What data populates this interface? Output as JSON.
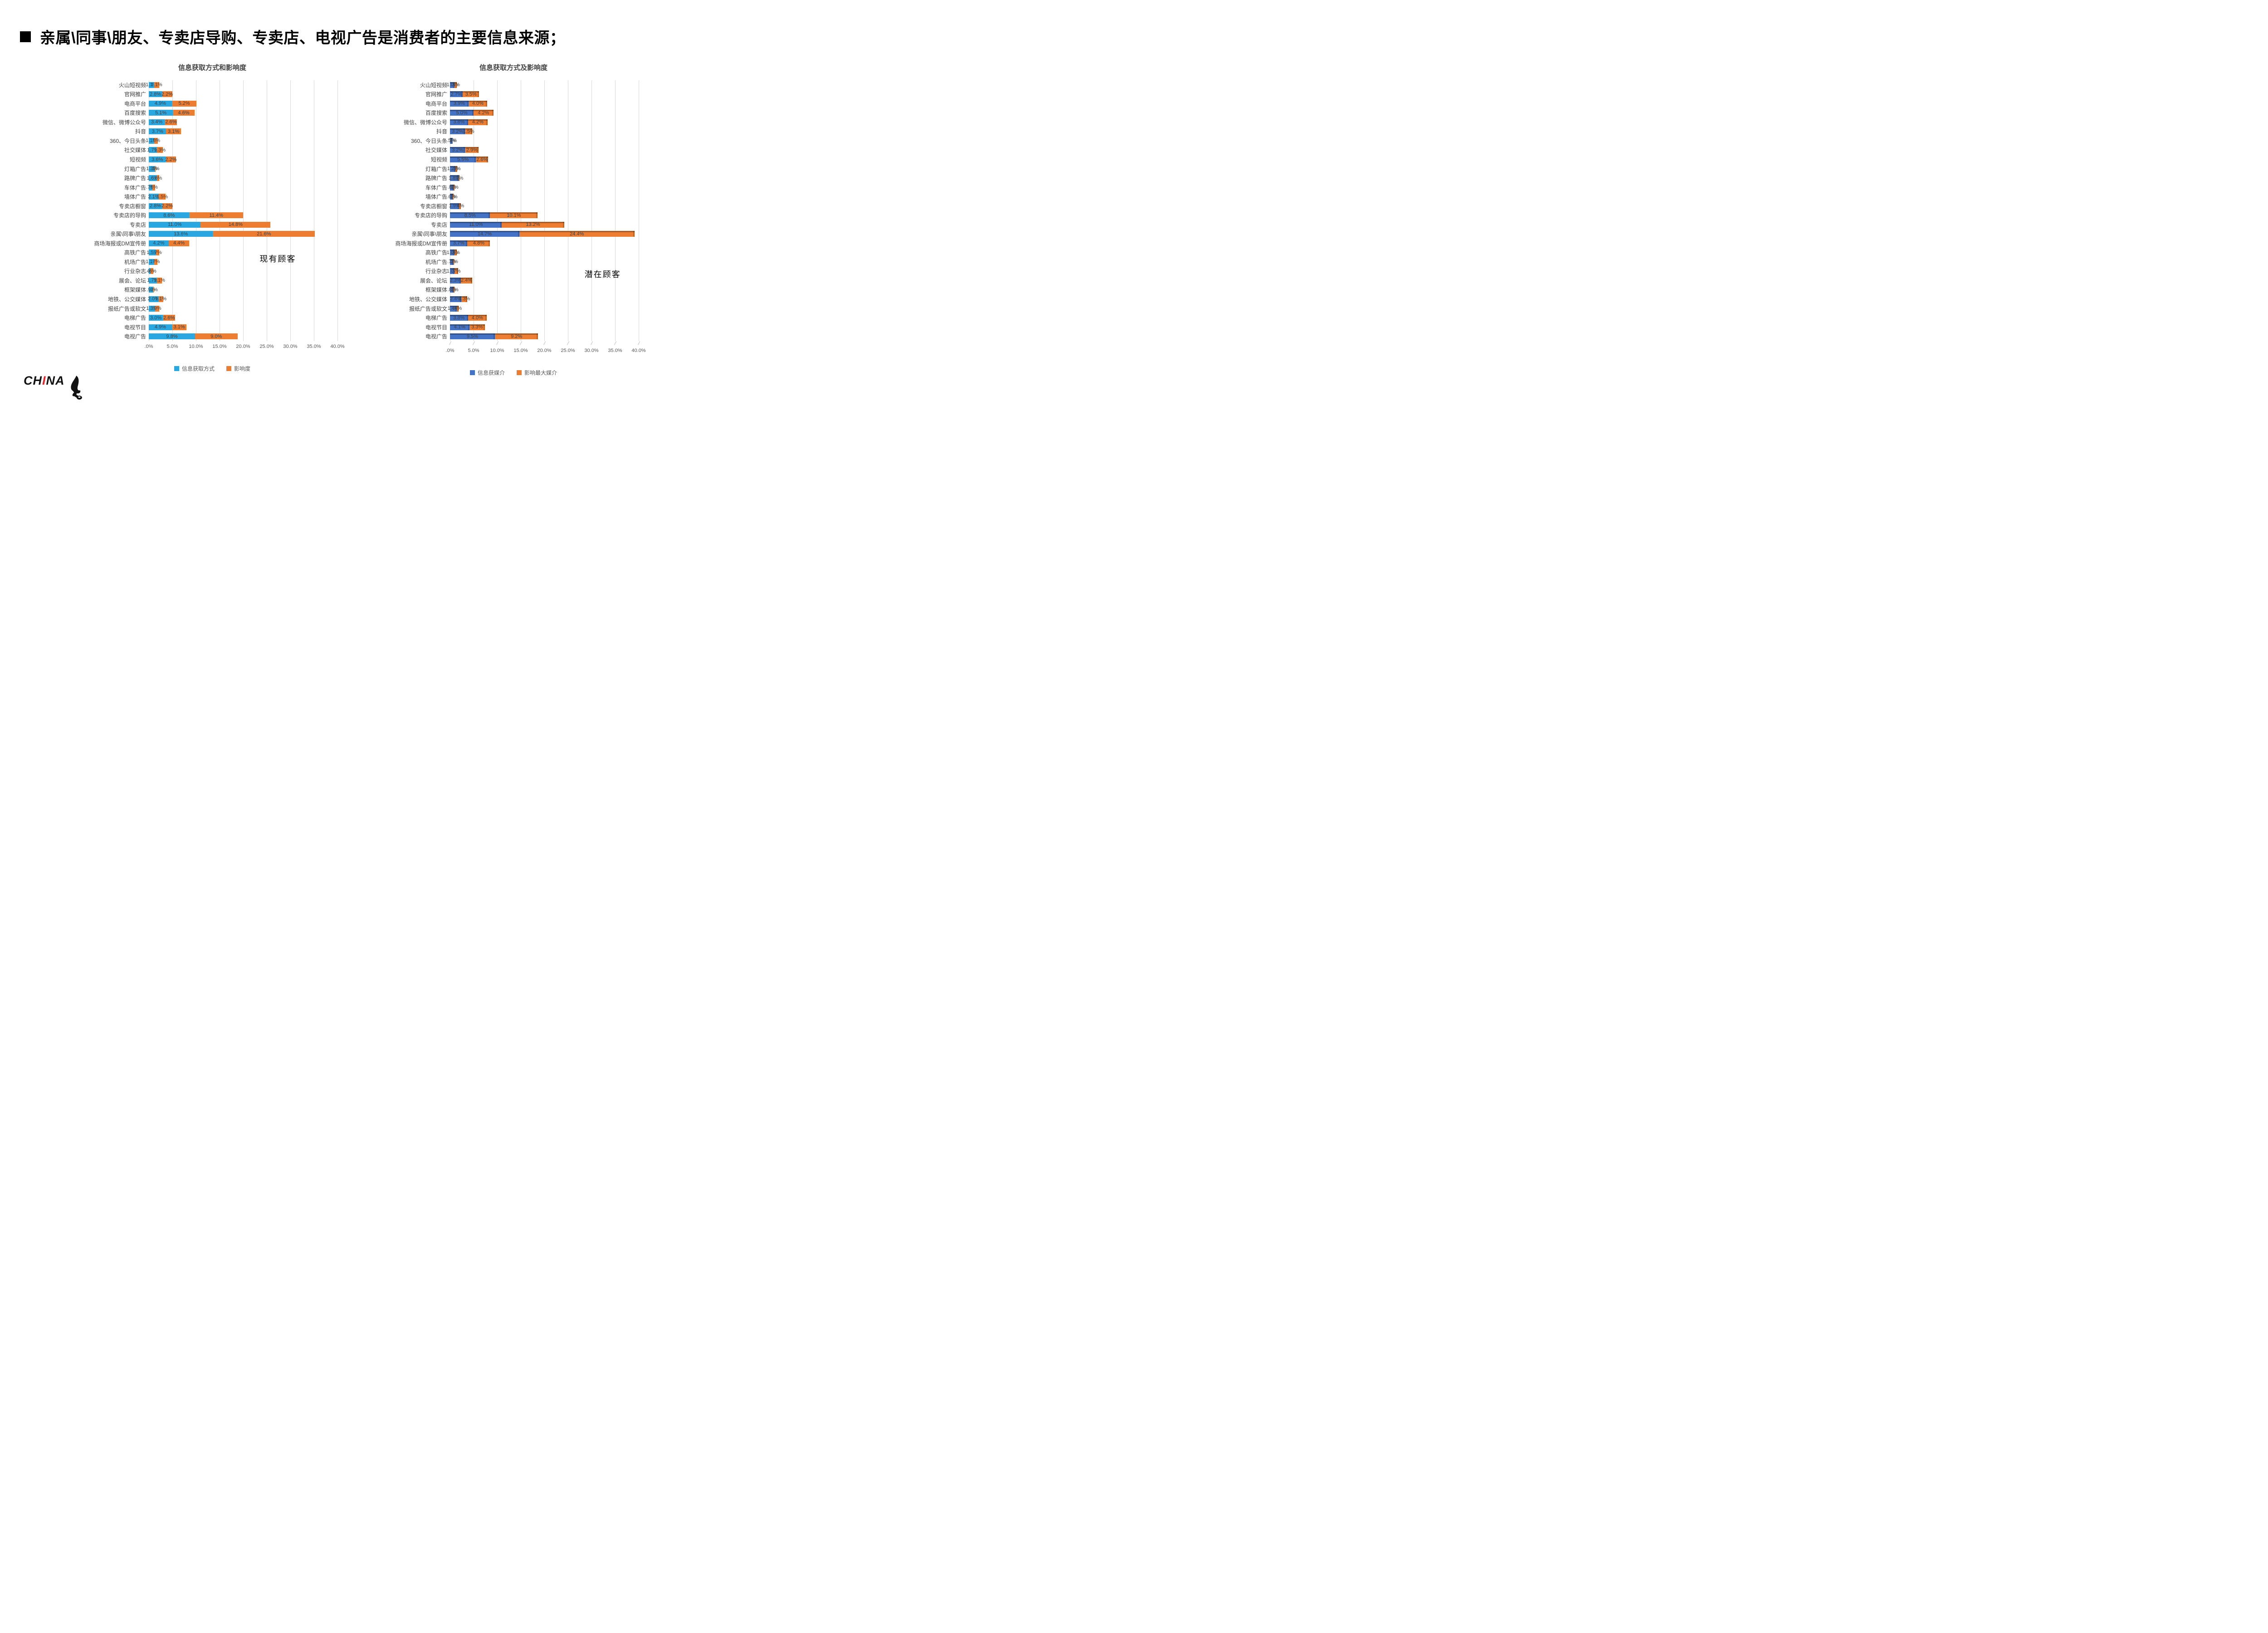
{
  "slide": {
    "title": "亲属\\同事\\朋友、专卖店导购、专卖店、电视广告是消费者的主要信息来源；"
  },
  "logo": {
    "left": "CH",
    "accent": "I",
    "right": "NA"
  },
  "colors": {
    "left_primary": "#29a7e1",
    "right_primary": "#4472c4",
    "secondary": "#ed7d31",
    "gridline": "#d9d9d9",
    "label_text": "#595959"
  },
  "chart_data": [
    {
      "type": "bar",
      "orientation": "horizontal-stacked",
      "style": "flat",
      "title": "信息获取方式和影响度",
      "annotation": "现有顾客",
      "xlim": [
        0,
        40
      ],
      "grid": true,
      "legend_position": "bottom",
      "x_ticks": [
        ".0%",
        "5.0%",
        "10.0%",
        "15.0%",
        "20.0%",
        "25.0%",
        "30.0%",
        "35.0%",
        "40.0%"
      ],
      "categories": [
        "火山短视频",
        "官网推广",
        "电商平台",
        "百度搜索",
        "微信、微博公众号",
        "抖音",
        "360、今日头条",
        "社交媒体",
        "短视频",
        "灯箱广告",
        "路牌广告",
        "车体广告",
        "墙体广告",
        "专卖店橱窗",
        "专卖店的导购",
        "专卖店",
        "亲属\\同事\\朋友",
        "商场海报或DM宣传册",
        "高铁广告",
        "机场广告",
        "行业杂志",
        "展会、论坛",
        "框架媒体",
        "地铁、公交媒体",
        "报纸广告或软文",
        "电梯广告",
        "电视节目",
        "电视广告"
      ],
      "series": [
        {
          "name": "信息获取方式",
          "color": "#29a7e1",
          "values": [
            1.1,
            2.8,
            4.9,
            5.1,
            3.4,
            3.7,
            1.1,
            1.7,
            3.6,
            1.3,
            1.6,
            0.7,
            2.1,
            2.8,
            8.6,
            11.0,
            13.6,
            4.2,
            1.5,
            1.1,
            0.4,
            1.7,
            0.9,
            2.0,
            1.3,
            3.0,
            4.9,
            9.8
          ],
          "labels": [
            "1.1%",
            "2.8%",
            "4.9%",
            "5.1%",
            "3.4%",
            "3.7%",
            "1.1%",
            "1.7%",
            "3.6%",
            "1.3%",
            "1.6%",
            ".7%",
            "2.1%",
            "2.8%",
            "8.6%",
            "11.0%",
            "13.6%",
            "4.2%",
            "1.5%",
            "1.1%",
            ".4%",
            "1.7%",
            ".9%",
            "2.0%",
            "1.3%",
            "3.0%",
            "4.9%",
            "9.8%"
          ]
        },
        {
          "name": "影响度",
          "color": "#ed7d31",
          "values": [
            1.1,
            2.2,
            5.2,
            4.6,
            2.6,
            3.1,
            0.8,
            1.3,
            2.2,
            0.1,
            0.6,
            0.6,
            1.5,
            2.2,
            11.4,
            14.8,
            21.6,
            4.4,
            0.7,
            0.7,
            0.6,
            1.1,
            0.2,
            1.1,
            0.9,
            2.6,
            3.1,
            9.0
          ],
          "labels": [
            "1.1%",
            "2.2%",
            "5.2%",
            "4.6%",
            "2.6%",
            "3.1%",
            ".8%",
            "1.3%",
            "2.2%",
            ".1%",
            ".6%",
            ".6%",
            "1.5%",
            "2.2%",
            "11.4%",
            "14.8%",
            "21.6%",
            "4.4%",
            ".7%",
            ".7%",
            ".6%",
            "1.1%",
            ".2%",
            "1.1%",
            ".9%",
            "2.6%",
            "3.1%",
            "9.0%"
          ]
        }
      ]
    },
    {
      "type": "bar",
      "orientation": "horizontal-stacked",
      "style": "3d",
      "title": "信息获取方式及影响度",
      "annotation": "潜在顾客",
      "xlim": [
        0,
        40
      ],
      "grid": true,
      "legend_position": "bottom",
      "x_ticks": [
        ".0%",
        "5.0%",
        "10.0%",
        "15.0%",
        "20.0%",
        "25.0%",
        "30.0%",
        "35.0%",
        "40.0%"
      ],
      "categories": [
        "火山短视频",
        "官网推广",
        "电商平台",
        "百度搜索",
        "微信、微博公众号",
        "抖音",
        "360、今日头条",
        "社交媒体",
        "短视频",
        "灯箱广告",
        "路牌广告",
        "车体广告",
        "墙体广告",
        "专卖店橱窗",
        "专卖店的导购",
        "专卖店",
        "亲属\\同事\\朋友",
        "商场海报或DM宣传册",
        "高铁广告",
        "机场广告",
        "行业杂志",
        "展会、论坛",
        "框架媒体",
        "地铁、公交媒体",
        "报纸广告或软文",
        "电梯广告",
        "电视节目",
        "电视广告"
      ],
      "series": [
        {
          "name": "信息获媒介",
          "color": "#4472c4",
          "values": [
            1.0,
            2.7,
            3.9,
            5.0,
            3.8,
            3.2,
            0.5,
            3.2,
            5.5,
            1.2,
            1.8,
            0.8,
            0.6,
            1.9,
            8.5,
            11.0,
            14.7,
            3.7,
            1.0,
            0.7,
            1.0,
            2.3,
            0.8,
            2.4,
            1.4,
            3.8,
            4.1,
            9.5
          ],
          "labels": [
            "1.0%",
            "2.7%",
            "3.9%",
            "5.0%",
            "3.8%",
            "3.2%",
            ".5%",
            "3.2%",
            "5.5%",
            "1.2%",
            "1.8%",
            ".8%",
            ".6%",
            "1.9%",
            "8.5%",
            "11.0%",
            "14.7%",
            "3.7%",
            "1.0%",
            ".7%",
            "1.0%",
            "2.3%",
            ".8%",
            "2.4%",
            "1.4%",
            "3.8%",
            "4.1%",
            "9.5%"
          ]
        },
        {
          "name": "影响最大媒介",
          "color": "#ed7d31",
          "values": [
            0.4,
            3.5,
            4.0,
            4.2,
            4.2,
            1.5,
            0.1,
            2.9,
            2.6,
            0.3,
            0.2,
            0.2,
            0.2,
            0.4,
            10.1,
            13.2,
            24.4,
            4.8,
            0.4,
            0.2,
            0.7,
            2.4,
            0.2,
            1.3,
            0.4,
            4.0,
            3.3,
            9.2
          ],
          "labels": [
            ".4%",
            "3.5%",
            "4.0%",
            "4.2%",
            "4.2%",
            "1.5%",
            ".1%",
            "2.9%",
            "2.6%",
            ".3%",
            ".2%",
            ".2%",
            ".2%",
            ".4%",
            "10.1%",
            "13.2%",
            "24.4%",
            "4.8%",
            ".4%",
            ".2%",
            ".7%",
            "2.4%",
            ".2%",
            "1.3%",
            ".4%",
            "4.0%",
            "3.3%",
            "9.2%"
          ]
        }
      ]
    }
  ]
}
